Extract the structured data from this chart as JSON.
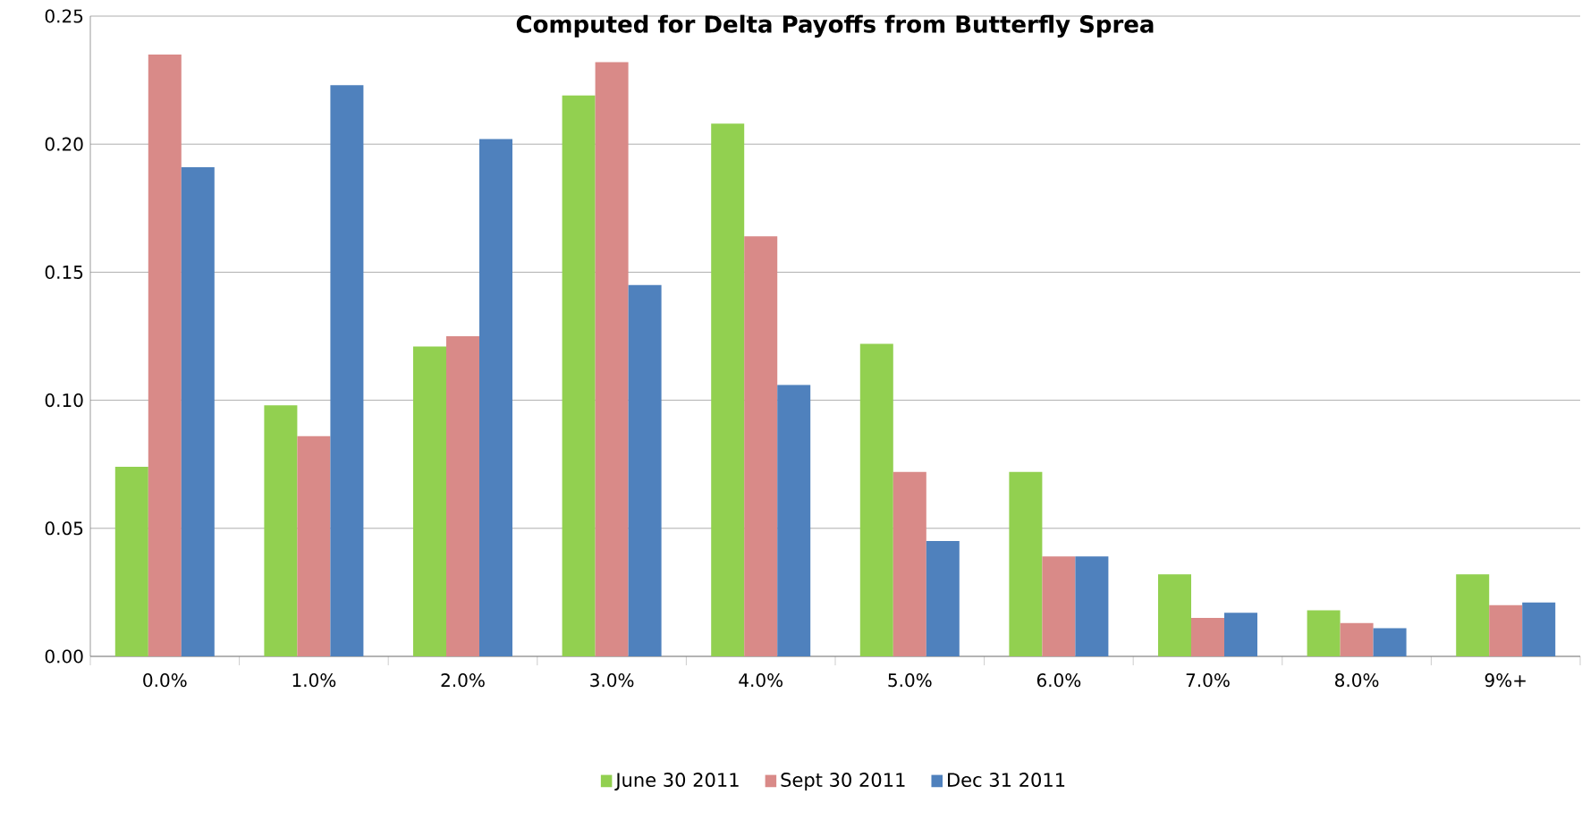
{
  "chart_data": {
    "type": "bar",
    "title": "Computed for Delta Payoffs from Butterfly Sprea",
    "categories": [
      "0.0%",
      "1.0%",
      "2.0%",
      "3.0%",
      "4.0%",
      "5.0%",
      "6.0%",
      "7.0%",
      "8.0%",
      "9%+"
    ],
    "series": [
      {
        "name": "June 30 2011",
        "color": "#92d050",
        "values": [
          0.074,
          0.098,
          0.121,
          0.219,
          0.208,
          0.122,
          0.072,
          0.032,
          0.018,
          0.032
        ]
      },
      {
        "name": "Sept 30 2011",
        "color": "#d98a88",
        "values": [
          0.235,
          0.086,
          0.125,
          0.232,
          0.164,
          0.072,
          0.039,
          0.015,
          0.013,
          0.02
        ]
      },
      {
        "name": "Dec 31 2011",
        "color": "#4f81bd",
        "values": [
          0.191,
          0.223,
          0.202,
          0.145,
          0.106,
          0.045,
          0.039,
          0.017,
          0.011,
          0.021
        ]
      }
    ],
    "ylim": [
      0,
      0.25
    ],
    "yticks": [
      {
        "value": 0,
        "label": "0.00"
      },
      {
        "value": 0.05,
        "label": "0.05"
      },
      {
        "value": 0.1,
        "label": "0.10"
      },
      {
        "value": 0.15,
        "label": "0.15"
      },
      {
        "value": 0.2,
        "label": "0.20"
      },
      {
        "value": 0.25,
        "label": "0.25"
      }
    ],
    "grid": "y",
    "legend": "bottom"
  }
}
